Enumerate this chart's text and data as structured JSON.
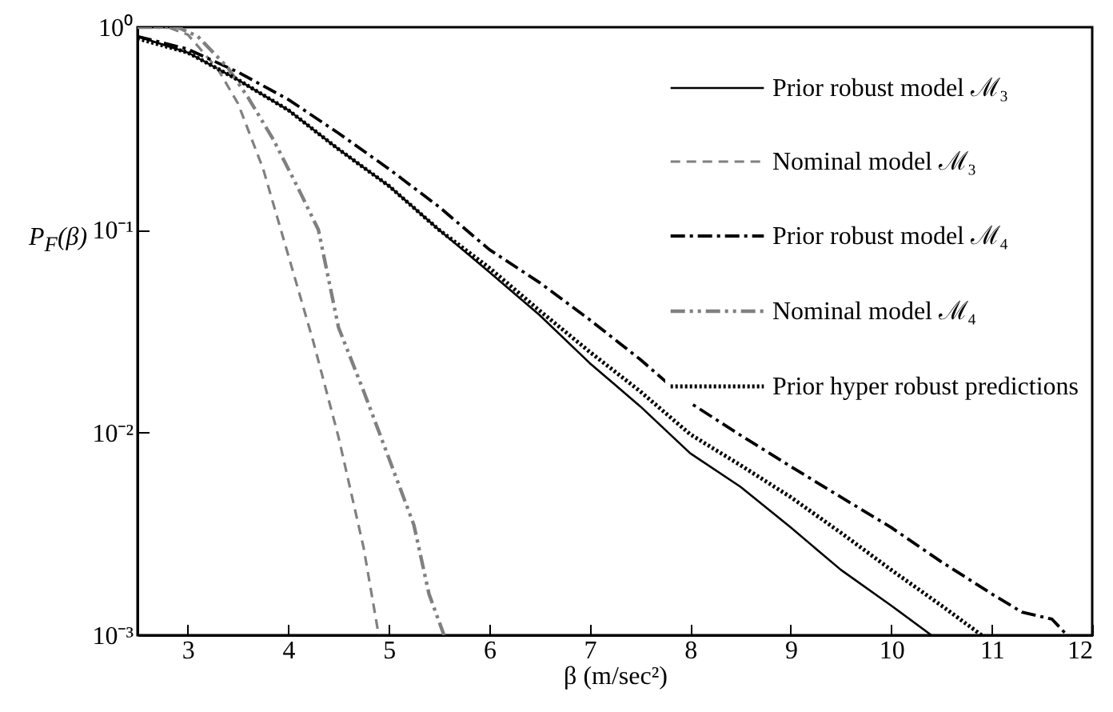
{
  "chart_data": {
    "type": "line",
    "xlabel": "β (m/sec²)",
    "ylabel": "P$_{F}$(β)",
    "log": "y",
    "xlim": [
      2.5,
      12
    ],
    "xticks": [
      3,
      4,
      5,
      6,
      7,
      8,
      9,
      10,
      11,
      12
    ],
    "ylim": [
      0.001,
      1
    ],
    "yticks": [
      {
        "value": 0.001,
        "label": "10⁻³"
      },
      {
        "value": 0.01,
        "label": "10⁻²"
      },
      {
        "value": 0.1,
        "label": "10⁻¹"
      },
      {
        "value": 1,
        "label": "10⁰"
      }
    ],
    "grid": false,
    "legend": "top right",
    "series": [
      {
        "name": "Prior robust model ℳ₃",
        "color": "#000000",
        "line_style": "solid",
        "x": [
          2.5,
          3,
          3.5,
          4,
          4.5,
          5,
          5.5,
          6,
          6.5,
          7,
          7.5,
          8,
          8.5,
          9,
          9.5,
          10,
          10.4
        ],
        "values": [
          0.9,
          0.75,
          0.55,
          0.39,
          0.25,
          0.165,
          0.1,
          0.062,
          0.038,
          0.022,
          0.0135,
          0.0079,
          0.0054,
          0.0034,
          0.0021,
          0.0014,
          0.001
        ]
      },
      {
        "name": "Nominal model ℳ₃",
        "color": "#808080",
        "line_style": "dashed",
        "x": [
          2.5,
          2.8,
          3,
          3.3,
          3.5,
          3.75,
          4,
          4.25,
          4.5,
          4.75,
          4.9
        ],
        "values": [
          1,
          1,
          0.92,
          0.62,
          0.42,
          0.2,
          0.075,
          0.028,
          0.0095,
          0.0027,
          0.001
        ]
      },
      {
        "name": "Prior robust model ℳ₄",
        "color": "#000000",
        "line_style": "dashdot",
        "x": [
          2.5,
          3,
          3.5,
          4,
          4.5,
          5,
          5.5,
          6,
          6.5,
          7,
          7.5,
          8,
          8.5,
          9,
          9.5,
          10,
          10.5,
          11,
          11.3,
          11.6,
          11.75
        ],
        "values": [
          0.9,
          0.78,
          0.6,
          0.44,
          0.3,
          0.2,
          0.13,
          0.08,
          0.055,
          0.036,
          0.023,
          0.014,
          0.0097,
          0.0068,
          0.0048,
          0.0034,
          0.0023,
          0.0016,
          0.0013,
          0.0012,
          0.001
        ]
      },
      {
        "name": "Nominal model ℳ₄",
        "color": "#808080",
        "line_style": "dashdotdot",
        "x": [
          2.5,
          2.9,
          3.1,
          3.4,
          3.6,
          3.85,
          4.1,
          4.3,
          4.5,
          4.75,
          5,
          5.25,
          5.4,
          5.55
        ],
        "values": [
          1,
          1,
          0.9,
          0.63,
          0.45,
          0.28,
          0.16,
          0.1,
          0.033,
          0.016,
          0.0075,
          0.0035,
          0.0016,
          0.001
        ]
      },
      {
        "name": "Prior hyper robust predictions",
        "color": "#000000",
        "line_style": "dotted",
        "x": [
          2.5,
          3,
          3.5,
          4,
          4.5,
          5,
          5.5,
          6,
          6.5,
          7,
          7.5,
          8,
          8.5,
          9,
          9.5,
          10,
          10.5,
          10.9
        ],
        "values": [
          0.88,
          0.75,
          0.55,
          0.39,
          0.25,
          0.165,
          0.1,
          0.065,
          0.04,
          0.025,
          0.016,
          0.0098,
          0.0069,
          0.0048,
          0.0032,
          0.0021,
          0.0014,
          0.001
        ]
      }
    ]
  }
}
